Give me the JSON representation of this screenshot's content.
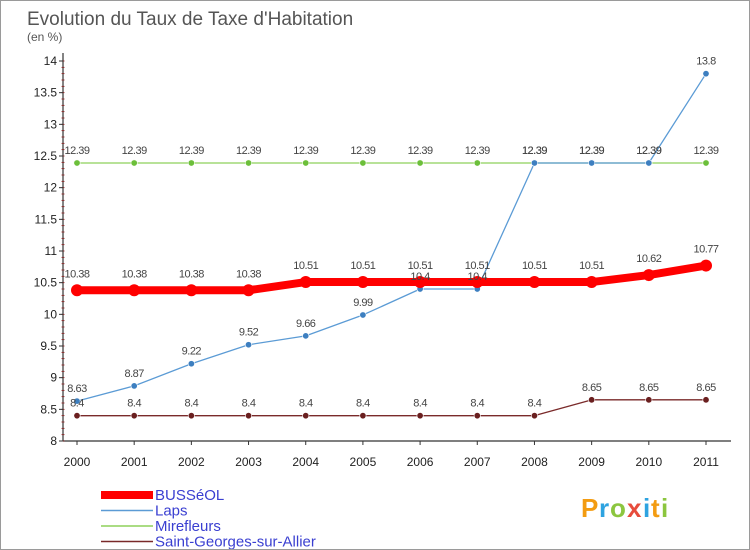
{
  "chart_data": {
    "type": "line",
    "title": "Evolution du Taux de Taxe d'Habitation",
    "subtitle": "(en %)",
    "x": [
      "2000",
      "2001",
      "2002",
      "2003",
      "2004",
      "2005",
      "2006",
      "2007",
      "2008",
      "2009",
      "2010",
      "2011"
    ],
    "ylim": [
      8,
      14
    ],
    "yticks": [
      "8",
      "8.5",
      "9",
      "9.5",
      "10",
      "10.5",
      "11",
      "11.5",
      "12",
      "12.5",
      "13",
      "13.5",
      "14"
    ],
    "grid": false,
    "legend_position": "bottom-left",
    "series": [
      {
        "name": "BUSSéOL",
        "color": "#ff0000",
        "values": [
          10.38,
          10.38,
          10.38,
          10.38,
          10.51,
          10.51,
          10.51,
          10.51,
          10.51,
          10.51,
          10.62,
          10.77
        ],
        "labels": [
          "10.38",
          "10.38",
          "10.38",
          "10.38",
          "10.51",
          "10.51",
          "10.51",
          "10.51",
          "10.51",
          "10.51",
          "10.62",
          "10.77"
        ]
      },
      {
        "name": "Laps",
        "color": "#5b9bd5",
        "values": [
          8.63,
          8.87,
          9.22,
          9.52,
          9.66,
          9.99,
          10.4,
          10.4,
          12.39,
          12.39,
          12.39,
          13.8
        ],
        "labels": [
          "8.63",
          "8.87",
          "9.22",
          "9.52",
          "9.66",
          "9.99",
          "10.4",
          "10.4",
          "12.39",
          "12.39",
          "12.39",
          "13.8"
        ]
      },
      {
        "name": "Mirefleurs",
        "color": "#8ed05a",
        "values": [
          12.39,
          12.39,
          12.39,
          12.39,
          12.39,
          12.39,
          12.39,
          12.39,
          12.39,
          12.39,
          12.39,
          12.39
        ],
        "labels": [
          "12.39",
          "12.39",
          "12.39",
          "12.39",
          "12.39",
          "12.39",
          "12.39",
          "12.39",
          "12.39",
          "12.39",
          "12.39",
          "12.39"
        ]
      },
      {
        "name": "Saint-Georges-sur-Allier",
        "color": "#7a2a2a",
        "values": [
          8.4,
          8.4,
          8.4,
          8.4,
          8.4,
          8.4,
          8.4,
          8.4,
          8.4,
          8.65,
          8.65,
          8.65
        ],
        "labels": [
          "8.4",
          "8.4",
          "8.4",
          "8.4",
          "8.4",
          "8.4",
          "8.4",
          "8.4",
          "8.4",
          "8.65",
          "8.65",
          "8.65"
        ]
      }
    ]
  },
  "logo": {
    "text": "Proxiti"
  }
}
